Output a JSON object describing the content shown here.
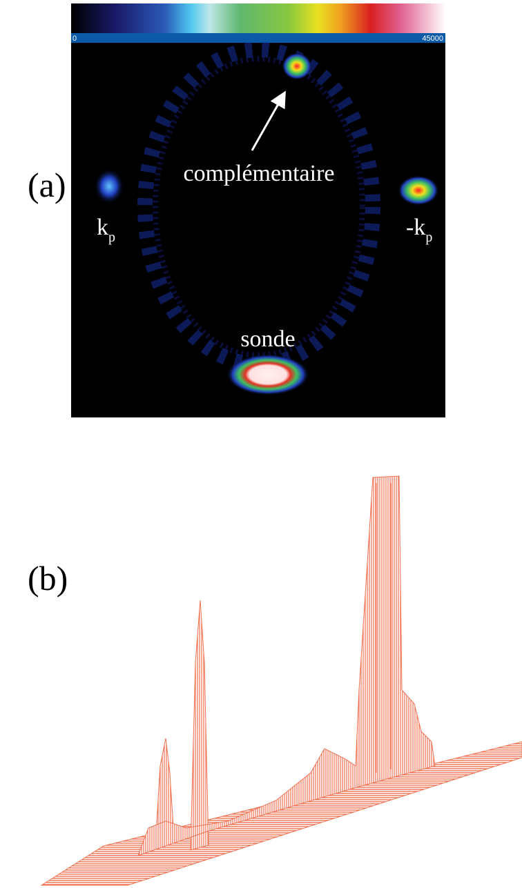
{
  "panels": [
    {
      "label": "(a)",
      "colorbar": {
        "min": 0,
        "max": 45000
      },
      "annotations": {
        "complementary": "complémentaire",
        "probe": "sonde",
        "kp": {
          "main": "k",
          "sub": "p"
        },
        "minus_kp": {
          "main": "-k",
          "sub": "p"
        }
      }
    },
    {
      "label": "(b)"
    }
  ]
}
